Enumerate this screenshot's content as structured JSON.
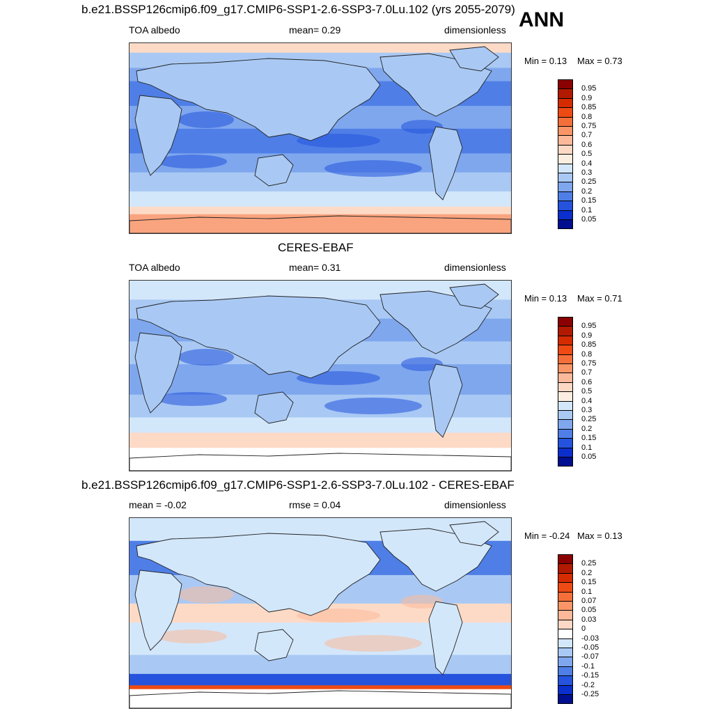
{
  "season": "ANN",
  "land_color": "#6e87d3",
  "coast_color": "#222222",
  "panels": [
    {
      "title": "b.e21.BSSP126cmip6.f09_g17.CMIP6-SSP1-2.6-SSP3-7.0Lu.102 (yrs 2055-2079)",
      "left_label": "TOA albedo",
      "center_label": "mean=   0.29",
      "right_label": "dimensionless",
      "min_label": "Min =   0.13",
      "max_label": "Max =   0.73",
      "colorbar": {
        "labels": [
          "0.95",
          "0.9",
          "0.85",
          "0.8",
          "0.75",
          "0.7",
          "0.6",
          "0.5",
          "0.4",
          "0.3",
          "0.25",
          "0.2",
          "0.15",
          "0.1",
          "0.05"
        ],
        "colors": [
          "#8b0000",
          "#b11a00",
          "#d42c00",
          "#ee4a14",
          "#f56f3b",
          "#f99566",
          "#fbb99a",
          "#fdd9c5",
          "#fbeee0",
          "#d3e7fb",
          "#a9c9f4",
          "#7fa7ee",
          "#4f7fe6",
          "#2553dd",
          "#0b2fcc",
          "#000f8f"
        ]
      },
      "bands": [
        {
          "y0": 0,
          "y1": 0.05,
          "color": "#fddac6"
        },
        {
          "y0": 0.05,
          "y1": 0.13,
          "color": "#a9c9f4"
        },
        {
          "y0": 0.13,
          "y1": 0.2,
          "color": "#7fa7ee"
        },
        {
          "y0": 0.2,
          "y1": 0.33,
          "color": "#4f7fe6"
        },
        {
          "y0": 0.33,
          "y1": 0.45,
          "color": "#7fa7ee"
        },
        {
          "y0": 0.45,
          "y1": 0.58,
          "color": "#4f7fe6"
        },
        {
          "y0": 0.58,
          "y1": 0.68,
          "color": "#7fa7ee"
        },
        {
          "y0": 0.68,
          "y1": 0.78,
          "color": "#a9c9f4"
        },
        {
          "y0": 0.78,
          "y1": 0.86,
          "color": "#d3e7fb"
        },
        {
          "y0": 0.86,
          "y1": 0.9,
          "color": "#fddac6"
        },
        {
          "y0": 0.9,
          "y1": 1,
          "color": "#f9a47f"
        }
      ]
    },
    {
      "title": "CERES-EBAF",
      "left_label": "TOA albedo",
      "center_label": "mean=   0.31",
      "right_label": "dimensionless",
      "min_label": "Min =   0.13",
      "max_label": "Max =   0.71",
      "colorbar": {
        "labels": [
          "0.95",
          "0.9",
          "0.85",
          "0.8",
          "0.75",
          "0.7",
          "0.6",
          "0.5",
          "0.4",
          "0.3",
          "0.25",
          "0.2",
          "0.15",
          "0.1",
          "0.05"
        ],
        "colors": [
          "#8b0000",
          "#b11a00",
          "#d42c00",
          "#ee4a14",
          "#f56f3b",
          "#f99566",
          "#fbb99a",
          "#fdd9c5",
          "#fbeee0",
          "#d3e7fb",
          "#a9c9f4",
          "#7fa7ee",
          "#4f7fe6",
          "#2553dd",
          "#0b2fcc",
          "#000f8f"
        ]
      },
      "bands": [
        {
          "y0": 0,
          "y1": 0.1,
          "color": "#d3e7fb"
        },
        {
          "y0": 0.1,
          "y1": 0.2,
          "color": "#a9c9f4"
        },
        {
          "y0": 0.2,
          "y1": 0.32,
          "color": "#7fa7ee"
        },
        {
          "y0": 0.32,
          "y1": 0.44,
          "color": "#a9c9f4"
        },
        {
          "y0": 0.44,
          "y1": 0.6,
          "color": "#7fa7ee"
        },
        {
          "y0": 0.6,
          "y1": 0.72,
          "color": "#a9c9f4"
        },
        {
          "y0": 0.72,
          "y1": 0.8,
          "color": "#d3e7fb"
        },
        {
          "y0": 0.8,
          "y1": 0.88,
          "color": "#fddac6"
        },
        {
          "y0": 0.88,
          "y1": 1,
          "color": "#ffffff"
        }
      ]
    },
    {
      "title": "b.e21.BSSP126cmip6.f09_g17.CMIP6-SSP1-2.6-SSP3-7.0Lu.102 - CERES-EBAF",
      "left_label": "mean =  -0.02",
      "center_label": "rmse =   0.04",
      "right_label": "dimensionless",
      "min_label": "Min =  -0.24",
      "max_label": "Max =   0.13",
      "colorbar": {
        "labels": [
          "0.25",
          "0.2",
          "0.15",
          "0.1",
          "0.07",
          "0.05",
          "0.03",
          "0",
          "-0.03",
          "-0.05",
          "-0.07",
          "-0.1",
          "-0.15",
          "-0.2",
          "-0.25"
        ],
        "colors": [
          "#8b0000",
          "#b11a00",
          "#d42c00",
          "#ee4a14",
          "#f56f3b",
          "#f99566",
          "#fbb99a",
          "#fdd9c5",
          "#ffffff",
          "#d3e7fb",
          "#a9c9f4",
          "#7fa7ee",
          "#4f7fe6",
          "#2553dd",
          "#0b2fcc",
          "#000f8f"
        ]
      },
      "bands": [
        {
          "y0": 0,
          "y1": 0.12,
          "color": "#d3e7fb"
        },
        {
          "y0": 0.12,
          "y1": 0.3,
          "color": "#4f7fe6"
        },
        {
          "y0": 0.3,
          "y1": 0.45,
          "color": "#a9c9f4"
        },
        {
          "y0": 0.45,
          "y1": 0.55,
          "color": "#fddac6"
        },
        {
          "y0": 0.55,
          "y1": 0.72,
          "color": "#d3e7fb"
        },
        {
          "y0": 0.72,
          "y1": 0.82,
          "color": "#a9c9f4"
        },
        {
          "y0": 0.82,
          "y1": 0.88,
          "color": "#2553dd"
        },
        {
          "y0": 0.88,
          "y1": 0.9,
          "color": "#ee4a14"
        },
        {
          "y0": 0.9,
          "y1": 1,
          "color": "#ffffff"
        }
      ]
    }
  ]
}
